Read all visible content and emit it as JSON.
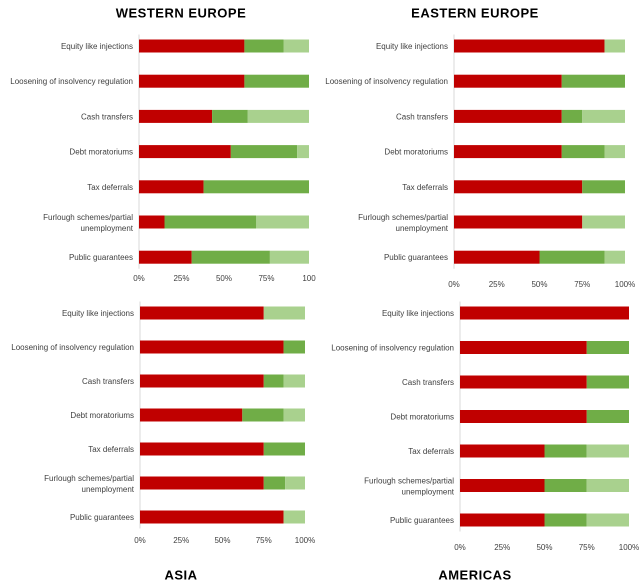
{
  "colors": {
    "series_1": "#c00000",
    "series_2": "#70ad47",
    "series_3": "#a9d18e"
  },
  "chart_data": [
    {
      "type": "bar",
      "orientation": "horizontal",
      "stacked": true,
      "title": "WESTERN  EUROPE",
      "categories": [
        "Equity like injections",
        "Loosening of insolvency regulation",
        "Cash transfers",
        "Debt moratoriums",
        "Tax deferrals",
        [
          "Furlough schemes/partial",
          "unemployment"
        ],
        "Public guarantees"
      ],
      "series": [
        {
          "values": [
            62,
            62,
            43,
            54,
            38,
            15,
            31
          ]
        },
        {
          "values": [
            23,
            38,
            21,
            39,
            62,
            54,
            46
          ]
        },
        {
          "values": [
            15,
            0,
            36,
            7,
            0,
            31,
            23
          ]
        }
      ],
      "xlim": [
        0,
        100
      ],
      "ticks": [
        "0%",
        "25%",
        "50%",
        "75%",
        "100"
      ],
      "grid": false
    },
    {
      "type": "bar",
      "orientation": "horizontal",
      "stacked": true,
      "title": "EASTERN  EUROPE",
      "categories": [
        "Equity like injections",
        "Loosening of insolvency regulation",
        "Cash transfers",
        "Debt moratoriums",
        "Tax deferrals",
        [
          "Furlough schemes/partial",
          "unemployment"
        ],
        "Public guarantees"
      ],
      "series": [
        {
          "values": [
            88,
            63,
            63,
            63,
            75,
            75,
            50
          ]
        },
        {
          "values": [
            0,
            37,
            12,
            25,
            25,
            0,
            38
          ]
        },
        {
          "values": [
            12,
            0,
            25,
            12,
            0,
            25,
            12
          ]
        }
      ],
      "xlim": [
        0,
        100
      ],
      "ticks": [
        "0%",
        "25%",
        "50%",
        "75%",
        "100%"
      ],
      "grid": false
    },
    {
      "type": "bar",
      "orientation": "horizontal",
      "stacked": true,
      "title": "ASIA",
      "categories": [
        "Equity like injections",
        "Loosening of insolvency regulation",
        "Cash transfers",
        "Debt moratoriums",
        "Tax deferrals",
        [
          "Furlough schemes/partial",
          "unemployment"
        ],
        "Public guarantees"
      ],
      "series": [
        {
          "values": [
            75,
            87,
            75,
            62,
            75,
            75,
            87
          ]
        },
        {
          "values": [
            0,
            13,
            12,
            25,
            25,
            13,
            0
          ]
        },
        {
          "values": [
            25,
            0,
            13,
            13,
            0,
            12,
            13
          ]
        }
      ],
      "xlim": [
        0,
        100
      ],
      "ticks": [
        "0%",
        "25%",
        "50%",
        "75%",
        "100%"
      ],
      "grid": false
    },
    {
      "type": "bar",
      "orientation": "horizontal",
      "stacked": true,
      "title": "AMERICAS",
      "categories": [
        "Equity like injections",
        "Loosening of insolvency regulation",
        "Cash transfers",
        "Debt moratoriums",
        "Tax deferrals",
        [
          "Furlough schemes/partial",
          "unemployment"
        ],
        "Public guarantees"
      ],
      "series": [
        {
          "values": [
            100,
            75,
            75,
            75,
            50,
            50,
            50
          ]
        },
        {
          "values": [
            0,
            25,
            25,
            25,
            25,
            25,
            25
          ]
        },
        {
          "values": [
            0,
            0,
            0,
            0,
            25,
            25,
            25
          ]
        }
      ],
      "xlim": [
        0,
        100
      ],
      "ticks": [
        "0%",
        "25%",
        "50%",
        "75%",
        "100%"
      ],
      "grid": false
    }
  ]
}
